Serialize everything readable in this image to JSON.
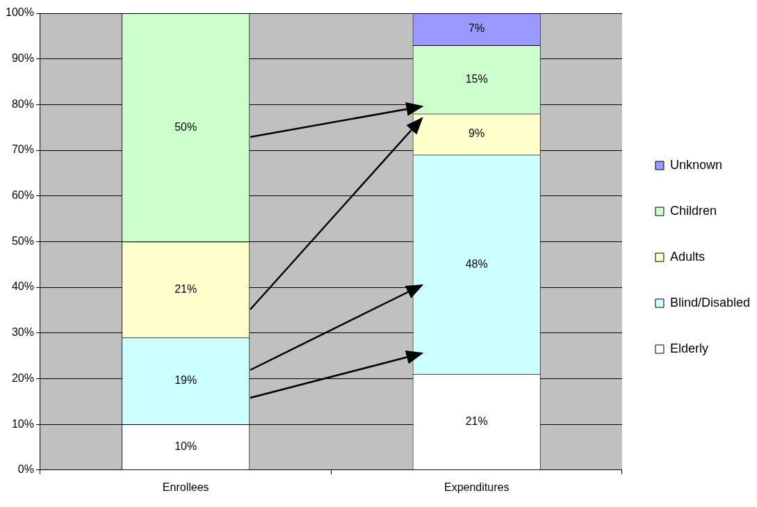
{
  "chart_data": {
    "type": "bar",
    "stacked": true,
    "categories": [
      "Enrollees",
      "Expenditures"
    ],
    "series": [
      {
        "name": "Elderly",
        "color": "#ffffff",
        "values": [
          10,
          21
        ],
        "value_labels": [
          "10%",
          "21%"
        ]
      },
      {
        "name": "Blind/Disabled",
        "color": "#ccffff",
        "values": [
          19,
          48
        ],
        "value_labels": [
          "19%",
          "48%"
        ]
      },
      {
        "name": "Adults",
        "color": "#ffffcc",
        "values": [
          21,
          9
        ],
        "value_labels": [
          "21%",
          "9%"
        ]
      },
      {
        "name": "Children",
        "color": "#ccffcc",
        "values": [
          50,
          15
        ],
        "value_labels": [
          "50%",
          "15%"
        ]
      },
      {
        "name": "Unknown",
        "color": "#9999ff",
        "values": [
          null,
          7
        ],
        "value_labels": [
          null,
          "7%"
        ]
      }
    ],
    "ylim": [
      0,
      100
    ],
    "yticks": [
      {
        "value": 0,
        "label": "0%"
      },
      {
        "value": 10,
        "label": "10%"
      },
      {
        "value": 20,
        "label": "20%"
      },
      {
        "value": 30,
        "label": "30%"
      },
      {
        "value": 40,
        "label": "40%"
      },
      {
        "value": 50,
        "label": "50%"
      },
      {
        "value": 60,
        "label": "60%"
      },
      {
        "value": 70,
        "label": "70%"
      },
      {
        "value": 80,
        "label": "80%"
      },
      {
        "value": 90,
        "label": "90%"
      },
      {
        "value": 100,
        "label": "100%"
      }
    ],
    "grid": "y",
    "legend": "right"
  }
}
